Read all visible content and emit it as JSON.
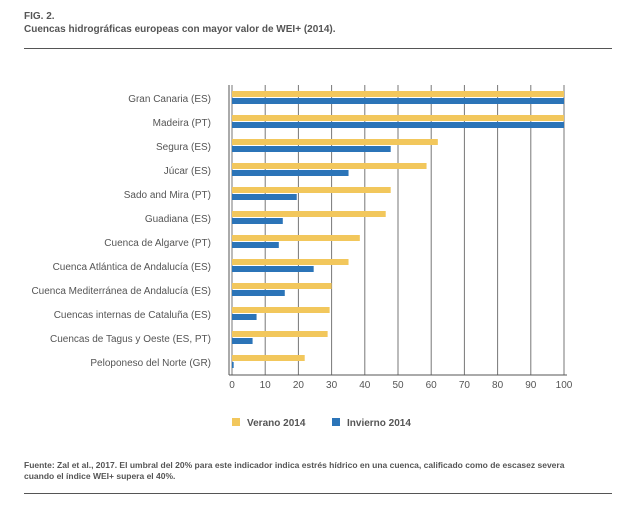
{
  "header": {
    "fig": "FIG. 2.",
    "title": "Cuencas hidrográficas europeas con mayor valor de WEI+ (2014)."
  },
  "footer": {
    "note": "Fuente: Zal et al., 2017. El umbral del 20% para este indicador indica estrés hídrico en una cuenca, calificado como de escasez severa cuando el índice WEI+ supera el 40%."
  },
  "chart_data": {
    "type": "bar",
    "orientation": "horizontal",
    "title": "Cuencas hidrográficas europeas con mayor valor de WEI+ (2014).",
    "categories": [
      "Gran Canaria (ES)",
      "Madeira (PT)",
      "Segura (ES)",
      "Júcar (ES)",
      "Sado and Mira (PT)",
      "Guadiana (ES)",
      "Cuenca de Algarve (PT)",
      "Cuenca Atlántica de Andalucía (ES)",
      "Cuenca Mediterránea de Andalucía (ES)",
      "Cuencas internas de Cataluña (ES)",
      "Cuencas de Tagus y Oeste (ES, PT)",
      "Peloponeso del Norte (GR)"
    ],
    "series": [
      {
        "name": "Verano 2014",
        "color": "#f2c75c",
        "values": [
          100,
          100,
          62,
          58.6,
          47.8,
          46.3,
          38.5,
          35.1,
          30,
          29.4,
          28.8,
          21.9
        ]
      },
      {
        "name": "Invierno 2014",
        "color": "#2b74b8",
        "values": [
          100,
          100,
          47.8,
          35.1,
          19.5,
          15.3,
          14.1,
          24.6,
          15.9,
          7.4,
          6.2,
          0.5
        ]
      }
    ],
    "xlim": [
      0,
      100
    ],
    "xticks": [
      "0",
      "10",
      "20",
      "30",
      "40",
      "50",
      "60",
      "70",
      "80",
      "90",
      "100"
    ],
    "grid": true,
    "legend": "bottom"
  }
}
